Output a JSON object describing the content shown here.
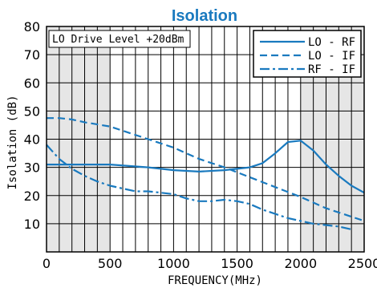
{
  "chart_data": {
    "type": "line",
    "title": "Isolation",
    "xlabel": "FREQUENCY(MHz)",
    "ylabel": "Isolation (dB)",
    "xlim": [
      0,
      2500
    ],
    "ylim": [
      0,
      80
    ],
    "x_ticks": [
      "0",
      "500",
      "1000",
      "1500",
      "2000",
      "2500"
    ],
    "y_ticks": [
      "10",
      "20",
      "30",
      "40",
      "50",
      "60",
      "70",
      "80"
    ],
    "annotation": "LO Drive Level +20dBm",
    "shaded_ranges": [
      [
        0,
        500
      ],
      [
        2000,
        2500
      ]
    ],
    "grid": true,
    "legend_position": "top-right",
    "series": [
      {
        "name": "LO - RF",
        "style": "solid",
        "color": "#1a7abf",
        "x": [
          0,
          200,
          500,
          800,
          1000,
          1200,
          1400,
          1600,
          1700,
          1800,
          1900,
          2000,
          2100,
          2200,
          2300,
          2400,
          2500
        ],
        "y": [
          31,
          31,
          31,
          30,
          29,
          28.5,
          29,
          30,
          31.5,
          35,
          39,
          39.5,
          36,
          31,
          27,
          23.5,
          21
        ]
      },
      {
        "name": "LO - IF",
        "style": "dashed",
        "color": "#1a7abf",
        "x": [
          0,
          100,
          200,
          300,
          500,
          800,
          1000,
          1200,
          1400,
          1600,
          1800,
          2000,
          2200,
          2400,
          2500
        ],
        "y": [
          47.5,
          47.5,
          47,
          46,
          44.5,
          40,
          37,
          33,
          30,
          26.5,
          23,
          19.5,
          15.5,
          12.5,
          11
        ]
      },
      {
        "name": "RF - IF",
        "style": "dashdot",
        "color": "#1a7abf",
        "x": [
          0,
          100,
          200,
          300,
          400,
          500,
          600,
          700,
          800,
          900,
          1000,
          1100,
          1200,
          1300,
          1400,
          1500,
          1600,
          1700,
          1800,
          1900,
          2000,
          2100,
          2200,
          2300,
          2400
        ],
        "y": [
          38,
          33,
          29.5,
          27,
          25,
          23.5,
          22.5,
          21.5,
          21.5,
          21,
          20.5,
          19,
          18,
          18,
          18.5,
          18,
          17,
          15,
          13.5,
          12,
          11,
          10,
          9.5,
          9,
          8
        ]
      }
    ]
  }
}
